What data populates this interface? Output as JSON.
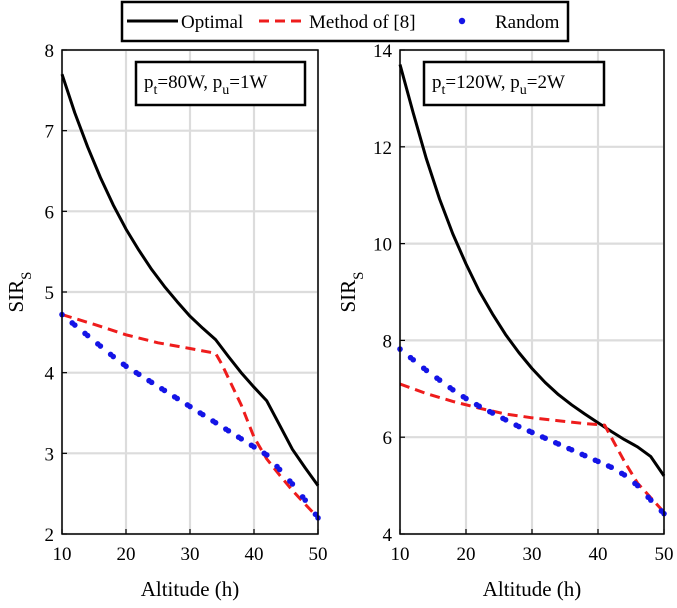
{
  "legend": {
    "items": [
      {
        "label": "Optimal",
        "color": "#000000",
        "style": "solid"
      },
      {
        "label": "Method of [8]",
        "color": "#ee1c1c",
        "style": "dashed"
      },
      {
        "label": "Random",
        "color": "#1414e6",
        "style": "dots"
      }
    ]
  },
  "chart_data": [
    {
      "type": "line",
      "annotation": {
        "p1": "p",
        "s1": "t",
        "v1": "=80W, ",
        "p2": "p",
        "s2": "u",
        "v2": "=1W"
      },
      "xlabel": "Altitude (h)",
      "ylabel": "SIR",
      "ylabel_sub": "S",
      "xlim": [
        10,
        50
      ],
      "ylim": [
        2,
        8
      ],
      "xticks": [
        10,
        20,
        30,
        40,
        50
      ],
      "yticks": [
        2,
        3,
        4,
        5,
        6,
        7,
        8
      ],
      "grid": true,
      "series": [
        {
          "name": "Optimal",
          "x": [
            10,
            12,
            14,
            16,
            18,
            20,
            22,
            24,
            26,
            28,
            30,
            32,
            34,
            36,
            38,
            40,
            42,
            44,
            46,
            48,
            50
          ],
          "y": [
            7.7,
            7.22,
            6.8,
            6.42,
            6.08,
            5.78,
            5.52,
            5.28,
            5.07,
            4.88,
            4.7,
            4.55,
            4.41,
            4.2,
            4.0,
            3.82,
            3.65,
            3.35,
            3.05,
            2.82,
            2.6
          ]
        },
        {
          "name": "Method of [8]",
          "x": [
            10,
            15,
            20,
            25,
            30,
            34,
            35,
            38,
            40,
            42,
            44,
            46,
            48,
            50
          ],
          "y": [
            4.72,
            4.6,
            4.47,
            4.37,
            4.3,
            4.24,
            4.1,
            3.6,
            3.2,
            2.93,
            2.73,
            2.54,
            2.37,
            2.2
          ]
        },
        {
          "name": "Random",
          "x": [
            10,
            12,
            14,
            16,
            18,
            20,
            22,
            24,
            26,
            28,
            30,
            32,
            34,
            36,
            38,
            40,
            42,
            44,
            46,
            48,
            50
          ],
          "y": [
            4.72,
            4.59,
            4.46,
            4.33,
            4.2,
            4.08,
            3.98,
            3.88,
            3.78,
            3.68,
            3.58,
            3.48,
            3.38,
            3.28,
            3.18,
            3.08,
            2.98,
            2.8,
            2.62,
            2.42,
            2.2
          ]
        }
      ]
    },
    {
      "type": "line",
      "annotation": {
        "p1": "p",
        "s1": "t",
        "v1": "=120W, ",
        "p2": "p",
        "s2": "u",
        "v2": "=2W"
      },
      "xlabel": "Altitude (h)",
      "ylabel": "SIR",
      "ylabel_sub": "S",
      "xlim": [
        10,
        50
      ],
      "ylim": [
        4,
        14
      ],
      "xticks": [
        10,
        20,
        30,
        40,
        50
      ],
      "yticks": [
        4,
        6,
        8,
        10,
        12,
        14
      ],
      "grid": true,
      "series": [
        {
          "name": "Optimal",
          "x": [
            10,
            12,
            14,
            16,
            18,
            20,
            22,
            24,
            26,
            28,
            30,
            32,
            34,
            36,
            38,
            40,
            42,
            44,
            46,
            48,
            50
          ],
          "y": [
            13.7,
            12.7,
            11.75,
            10.92,
            10.2,
            9.58,
            9.02,
            8.55,
            8.12,
            7.75,
            7.42,
            7.13,
            6.88,
            6.67,
            6.48,
            6.3,
            6.12,
            5.95,
            5.8,
            5.6,
            5.2
          ]
        },
        {
          "name": "Method of [8]",
          "x": [
            10,
            14,
            18,
            22,
            26,
            30,
            34,
            38,
            41,
            42,
            44,
            46,
            48,
            50
          ],
          "y": [
            7.1,
            6.9,
            6.74,
            6.6,
            6.48,
            6.4,
            6.34,
            6.28,
            6.25,
            6.0,
            5.5,
            5.05,
            4.75,
            4.45
          ]
        },
        {
          "name": "Random",
          "x": [
            10,
            12,
            14,
            16,
            18,
            20,
            22,
            24,
            26,
            28,
            30,
            32,
            34,
            36,
            38,
            40,
            42,
            44,
            46,
            48,
            50
          ],
          "y": [
            7.82,
            7.6,
            7.38,
            7.18,
            6.98,
            6.8,
            6.64,
            6.5,
            6.36,
            6.22,
            6.1,
            5.98,
            5.86,
            5.74,
            5.62,
            5.5,
            5.38,
            5.22,
            5.0,
            4.7,
            4.42
          ]
        }
      ]
    }
  ]
}
